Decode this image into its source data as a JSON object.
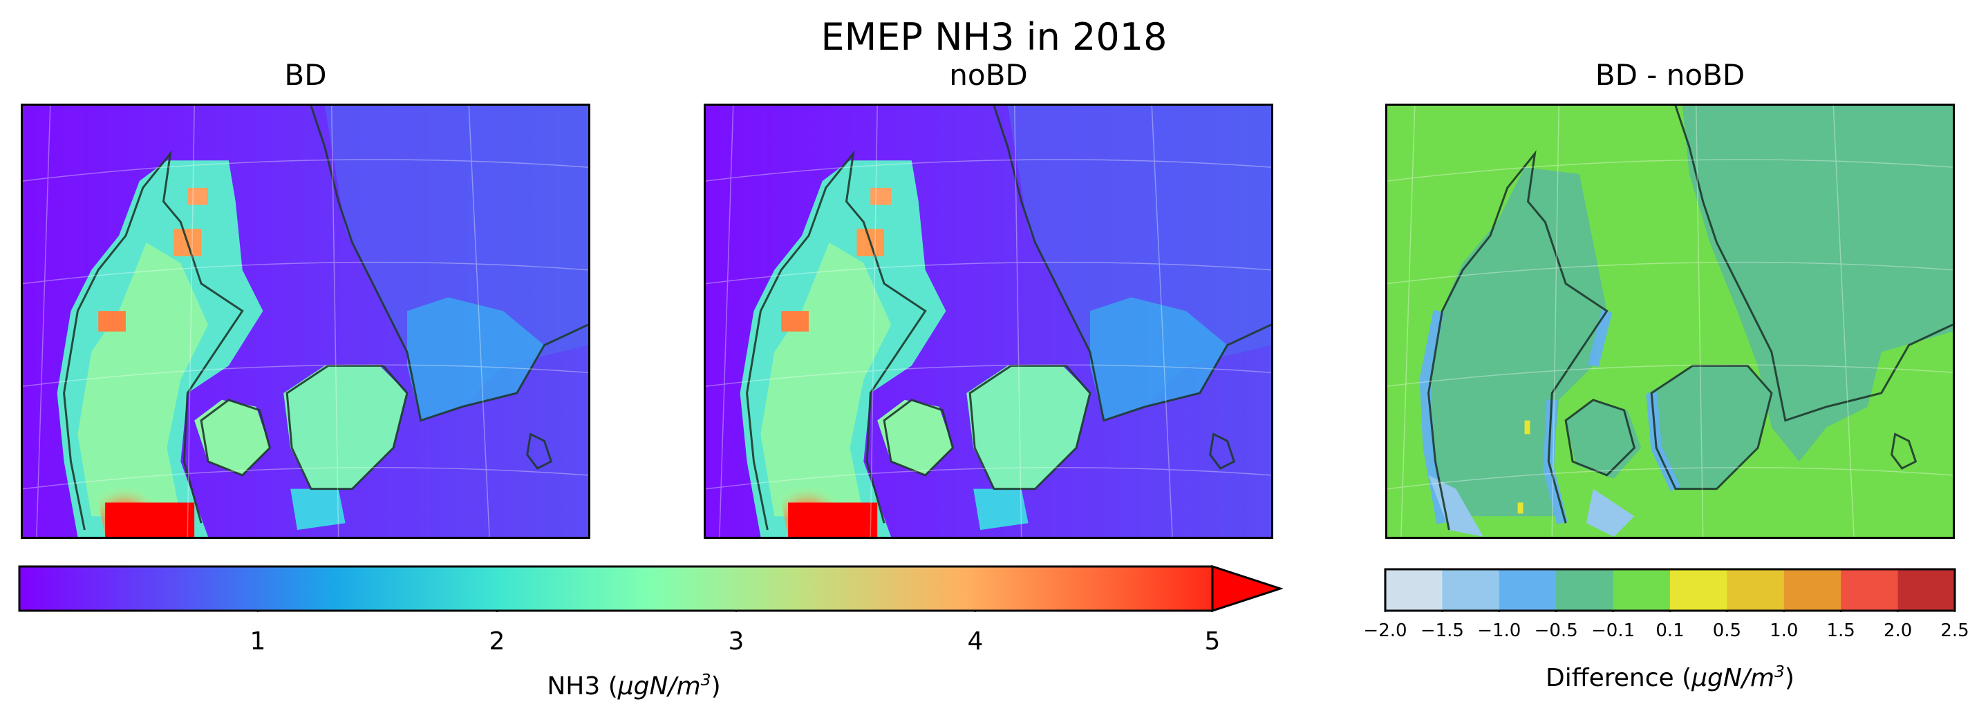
{
  "figure": {
    "title": "EMEP NH3 in 2018"
  },
  "panels": [
    {
      "title": "BD"
    },
    {
      "title": "noBD"
    },
    {
      "title": "BD - noBD"
    }
  ],
  "colorbar_main": {
    "label_text": "NH3 (",
    "label_unit_base": "μgN/m",
    "label_unit_exp": "3",
    "label_close": ")",
    "ticks": [
      "1",
      "2",
      "3",
      "4",
      "5"
    ],
    "range": [
      0,
      5
    ],
    "extend": "max",
    "colormap": "rainbow"
  },
  "colorbar_diff": {
    "label_text": "Difference (",
    "label_unit_base": "μgN/m",
    "label_unit_exp": "3",
    "label_close": ")",
    "ticks": [
      "−2.0",
      "−1.5",
      "−1.0",
      "−0.5",
      "−0.1",
      "0.1",
      "0.5",
      "1.0",
      "1.5",
      "2.0",
      "2.5"
    ],
    "bins": [
      {
        "from": -2.0,
        "to": -1.5,
        "color": "#cfe0ec"
      },
      {
        "from": -1.5,
        "to": -1.0,
        "color": "#95c8ec"
      },
      {
        "from": -1.0,
        "to": -0.5,
        "color": "#64b1ef"
      },
      {
        "from": -0.5,
        "to": -0.1,
        "color": "#5ebf8f"
      },
      {
        "from": -0.1,
        "to": 0.1,
        "color": "#72dd4c"
      },
      {
        "from": 0.1,
        "to": 0.5,
        "color": "#e7e531"
      },
      {
        "from": 0.5,
        "to": 1.0,
        "color": "#e5c52f"
      },
      {
        "from": 1.0,
        "to": 1.5,
        "color": "#e6982e"
      },
      {
        "from": 1.5,
        "to": 2.0,
        "color": "#ef5040"
      },
      {
        "from": 2.0,
        "to": 2.5,
        "color": "#c12e2e"
      }
    ]
  },
  "colors": {
    "sea_low": "#7b0fff",
    "sea_mid": "#5a4cf7",
    "land_mid": "#7ff0b8",
    "land_high": "#ffa060",
    "hotspot": "#ff0000",
    "diff_sea": "#5ebf8f",
    "diff_land": "#72dd4c",
    "coastline": "#1e3a2e"
  }
}
